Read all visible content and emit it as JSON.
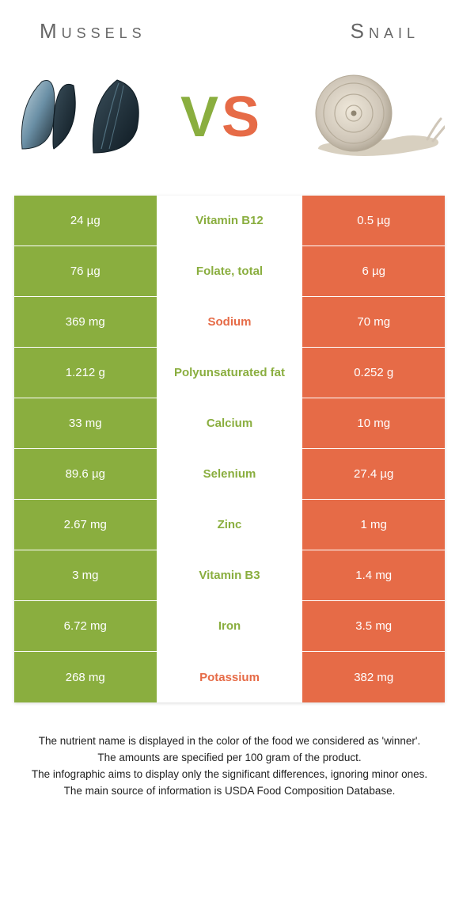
{
  "header": {
    "left": "Mussels",
    "right": "Snail"
  },
  "vs": {
    "v": "V",
    "s": "S"
  },
  "colors": {
    "left_bg": "#8aae3f",
    "right_bg": "#e66b47",
    "mid_bg": "#ffffff",
    "value_text": "#ffffff",
    "title_text": "#666666",
    "footnote_text": "#222222"
  },
  "nutrients": [
    {
      "name": "Vitamin B12",
      "left": "24 µg",
      "right": "0.5 µg",
      "winner": "left"
    },
    {
      "name": "Folate, total",
      "left": "76 µg",
      "right": "6 µg",
      "winner": "left"
    },
    {
      "name": "Sodium",
      "left": "369 mg",
      "right": "70 mg",
      "winner": "right"
    },
    {
      "name": "Polyunsaturated fat",
      "left": "1.212 g",
      "right": "0.252 g",
      "winner": "left"
    },
    {
      "name": "Calcium",
      "left": "33 mg",
      "right": "10 mg",
      "winner": "left"
    },
    {
      "name": "Selenium",
      "left": "89.6 µg",
      "right": "27.4 µg",
      "winner": "left"
    },
    {
      "name": "Zinc",
      "left": "2.67 mg",
      "right": "1 mg",
      "winner": "left"
    },
    {
      "name": "Vitamin B3",
      "left": "3 mg",
      "right": "1.4 mg",
      "winner": "left"
    },
    {
      "name": "Iron",
      "left": "6.72 mg",
      "right": "3.5 mg",
      "winner": "left"
    },
    {
      "name": "Potassium",
      "left": "268 mg",
      "right": "382 mg",
      "winner": "right"
    }
  ],
  "footnotes": [
    "The nutrient name is displayed in the color of the food we considered as 'winner'.",
    "The amounts are specified per 100 gram of the product.",
    "The infographic aims to display only the significant differences, ignoring minor ones.",
    "The main source of information is USDA Food Composition Database."
  ],
  "illustrations": {
    "mussel_shell_dark": "#1e2b33",
    "mussel_shell_light": "#9bb8c8",
    "snail_shell": "#cfc6b8",
    "snail_body": "#d8d0c0"
  }
}
